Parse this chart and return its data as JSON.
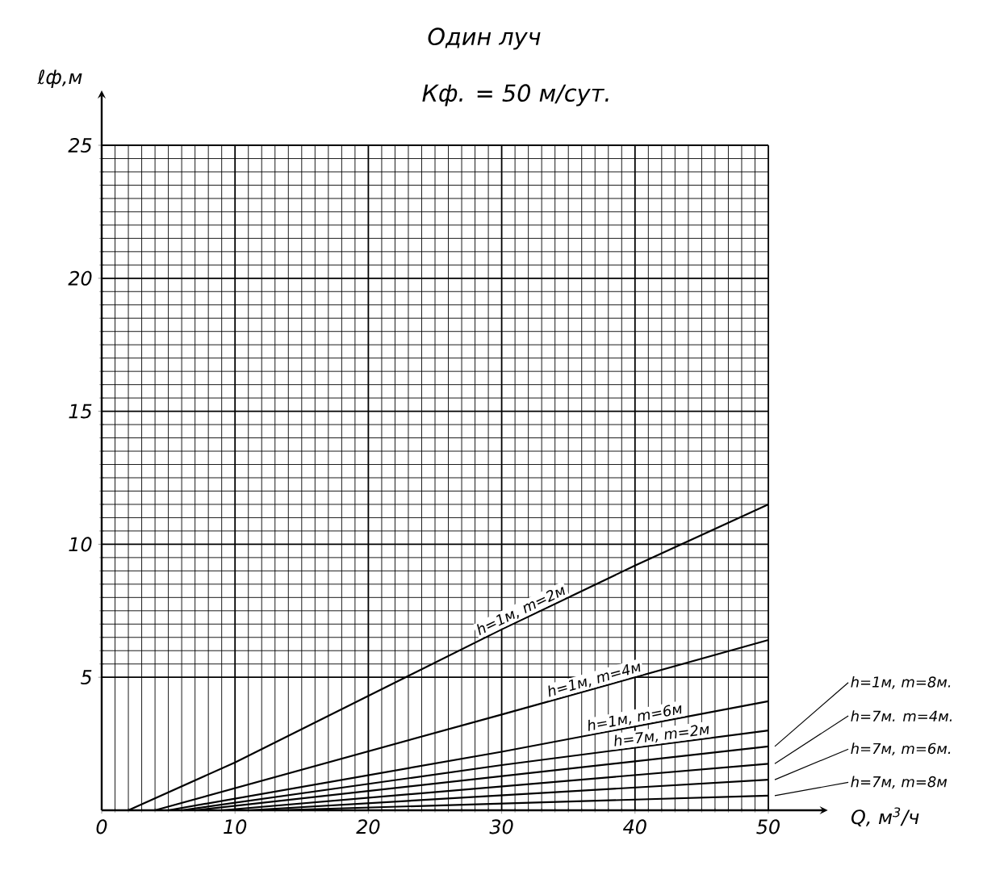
{
  "chart_data": {
    "type": "line",
    "title": "Один луч",
    "subtitle": "Кф. = 50 м/сут.",
    "xlabel": "Q, м$^{3}$/ч",
    "ylabel": "ℓф,м",
    "xlim": [
      0,
      50
    ],
    "ylim": [
      0,
      25
    ],
    "xticks": [
      0,
      10,
      20,
      30,
      40,
      50
    ],
    "yticks": [
      5,
      10,
      15,
      20,
      25
    ],
    "grid": true,
    "marker": "none",
    "line_style": "solid",
    "series": [
      {
        "name": "h=1м, m=2м",
        "color": "#000000",
        "x": [
          2,
          10,
          20,
          30,
          40,
          50
        ],
        "values": [
          0,
          1.8,
          4.3,
          6.8,
          9.2,
          11.5
        ]
      },
      {
        "name": "h=1м, m=4м",
        "color": "#000000",
        "x": [
          4,
          30,
          50
        ],
        "values": [
          0,
          3.6,
          6.4
        ]
      },
      {
        "name": "h=1м, m=6м",
        "color": "#000000",
        "x": [
          5,
          30,
          50
        ],
        "values": [
          0,
          2.2,
          4.1
        ]
      },
      {
        "name": "h=7м, m=2м",
        "color": "#000000",
        "x": [
          6,
          30,
          50
        ],
        "values": [
          0,
          1.7,
          3.0
        ]
      },
      {
        "name": "h=1м, m=8м.",
        "color": "#000000",
        "x": [
          7,
          50
        ],
        "values": [
          0,
          2.4
        ]
      },
      {
        "name": "h=7м. m=4м.",
        "color": "#000000",
        "x": [
          9,
          50
        ],
        "values": [
          0,
          1.75
        ]
      },
      {
        "name": "h=7м, m=6м.",
        "color": "#000000",
        "x": [
          11,
          50
        ],
        "values": [
          0,
          1.15
        ]
      },
      {
        "name": "h=7м, m=8м",
        "color": "#000000",
        "x": [
          13,
          50
        ],
        "values": [
          0,
          0.55
        ]
      }
    ]
  }
}
